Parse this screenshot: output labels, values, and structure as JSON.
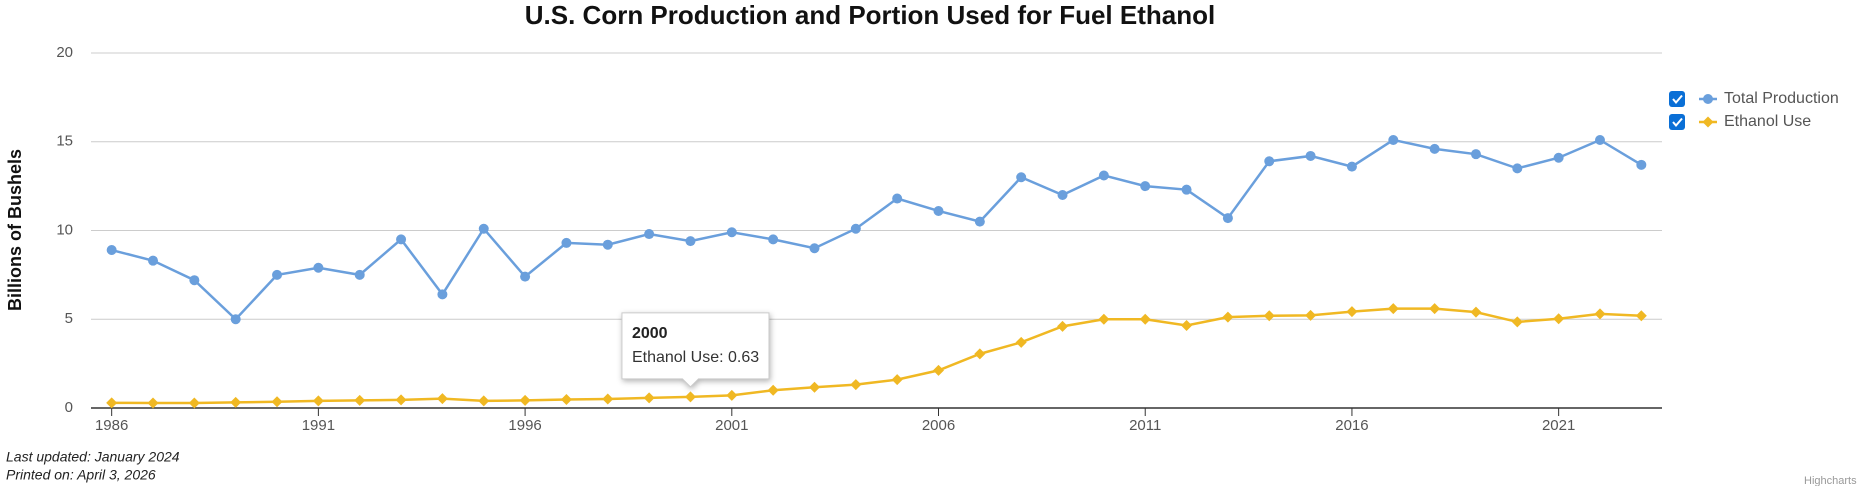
{
  "chart_data": {
    "type": "line",
    "title": "U.S. Corn Production and Portion Used for Fuel Ethanol",
    "y_label": "Billions of Bushels",
    "x": [
      1986,
      1987,
      1988,
      1989,
      1990,
      1991,
      1992,
      1993,
      1994,
      1995,
      1996,
      1997,
      1998,
      1999,
      2000,
      2001,
      2002,
      2003,
      2004,
      2005,
      2006,
      2007,
      2008,
      2009,
      2010,
      2011,
      2012,
      2013,
      2014,
      2015,
      2016,
      2017,
      2018,
      2019,
      2020,
      2021,
      2022,
      2023
    ],
    "series": [
      {
        "name": "Total Production",
        "color": "#6a9fdc",
        "marker": "circle",
        "values": [
          8.9,
          8.3,
          7.2,
          5.0,
          7.5,
          7.9,
          7.5,
          9.5,
          6.4,
          10.1,
          7.4,
          9.3,
          9.2,
          9.8,
          9.4,
          9.9,
          9.5,
          9.0,
          10.1,
          11.8,
          11.1,
          10.5,
          13.0,
          12.0,
          13.1,
          12.5,
          12.3,
          10.7,
          13.9,
          14.2,
          13.6,
          15.1,
          14.6,
          14.3,
          13.5,
          14.1,
          15.1,
          13.7
        ]
      },
      {
        "name": "Ethanol Use",
        "color": "#f0b823",
        "marker": "diamond",
        "values": [
          0.29,
          0.28,
          0.28,
          0.32,
          0.35,
          0.4,
          0.43,
          0.46,
          0.53,
          0.4,
          0.43,
          0.48,
          0.51,
          0.57,
          0.63,
          0.71,
          1.0,
          1.17,
          1.32,
          1.6,
          2.12,
          3.05,
          3.7,
          4.6,
          5.0,
          5.0,
          4.65,
          5.12,
          5.2,
          5.22,
          5.43,
          5.6,
          5.6,
          5.4,
          4.85,
          5.03,
          5.3,
          5.2
        ]
      }
    ],
    "xlim": [
      1985.5,
      2023.5
    ],
    "xticks": [
      1986,
      1991,
      1996,
      2001,
      2006,
      2011,
      2016,
      2021
    ],
    "ylim": [
      0,
      20
    ],
    "yticks": [
      0,
      5,
      10,
      15,
      20
    ],
    "grid": true,
    "legend": "right",
    "tooltip": {
      "series": 1,
      "index": 14,
      "title": "2000",
      "text": "Ethanol Use: 0.63"
    },
    "footer": [
      "Last updated: January 2024",
      "Printed on: April 3, 2026"
    ],
    "credit": "Highcharts"
  }
}
